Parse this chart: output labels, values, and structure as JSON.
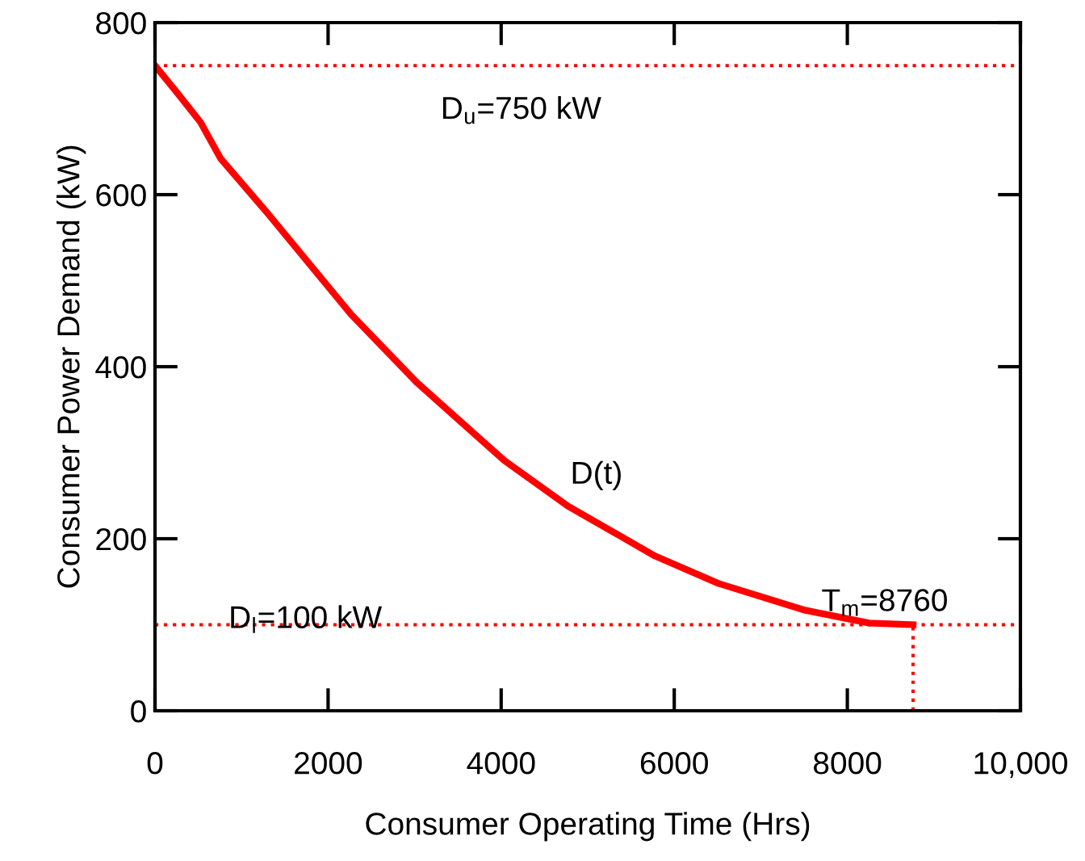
{
  "chart_data": {
    "type": "line",
    "xlabel": "Consumer Operating Time (Hrs)",
    "ylabel": "Consumer Power Demand (kW)",
    "x": [
      0,
      260,
      527,
      758,
      1296,
      2265,
      3032,
      4036,
      4772,
      5776,
      6511,
      7509,
      8250,
      8760
    ],
    "series": [
      {
        "color": "#ff0000",
        "values": [
          750,
          718,
          684,
          642,
          579,
          461,
          381,
          291,
          238,
          180,
          148,
          117,
          102,
          100
        ]
      }
    ],
    "xlim": [
      0,
      10000
    ],
    "xticks": [
      0,
      2000,
      4000,
      6000,
      8000,
      {
        "value": 10000,
        "label": "10,000"
      }
    ],
    "ylim": [
      0,
      800
    ],
    "yticks": [
      0,
      200,
      400,
      600,
      800
    ],
    "grid": false,
    "legend": false,
    "marker": "none",
    "line_style": "solid",
    "ref_lines": [
      {
        "axis": "y",
        "value": 750,
        "color": "#ff0000",
        "line_style": "dotted"
      },
      {
        "axis": "y",
        "value": 100,
        "color": "#ff0000",
        "line_style": "dotted"
      },
      {
        "axis": "x",
        "value": 8760,
        "color": "#ff0000",
        "line_style": "dotted"
      }
    ],
    "annotations": [
      "D$_{u}$=750 kW",
      "D$_{l}$=100 kW",
      "D(t)",
      "T$_{m}$=8760"
    ]
  }
}
